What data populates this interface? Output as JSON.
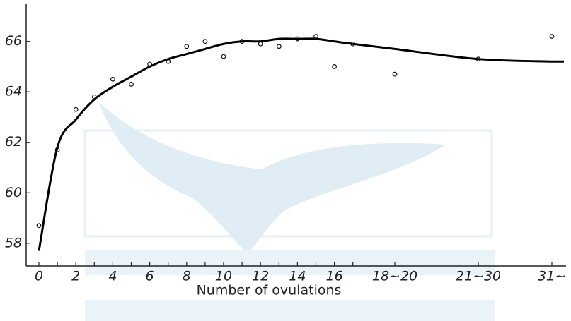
{
  "chart_data": {
    "type": "scatter",
    "xlabel": "Number of ovulations",
    "categories": [
      "0",
      null,
      "2",
      null,
      "4",
      null,
      "6",
      null,
      "8",
      null,
      "10",
      null,
      "12",
      null,
      "14",
      null,
      "16",
      null,
      "18~20",
      "21~30",
      "31~"
    ],
    "series": [
      {
        "mark": "points",
        "color": "#111111",
        "values": [
          58.7,
          61.7,
          63.3,
          63.8,
          64.5,
          64.3,
          65.1,
          65.2,
          65.8,
          66.0,
          65.4,
          66.0,
          65.9,
          65.8,
          66.1,
          66.2,
          65.0,
          65.9,
          64.7,
          65.3,
          66.2
        ]
      },
      {
        "mark": "line",
        "color": "#000000",
        "values": [
          57.7,
          61.8,
          62.9,
          63.7,
          64.2,
          64.6,
          65.0,
          65.3,
          65.5,
          65.7,
          65.9,
          66.0,
          66.0,
          66.1,
          66.1,
          66.1,
          66.0,
          65.9,
          65.7,
          65.3,
          65.2
        ]
      }
    ],
    "ylim": [
      57.1,
      67.5
    ],
    "yticks": [
      58,
      60,
      62,
      64,
      66
    ]
  }
}
